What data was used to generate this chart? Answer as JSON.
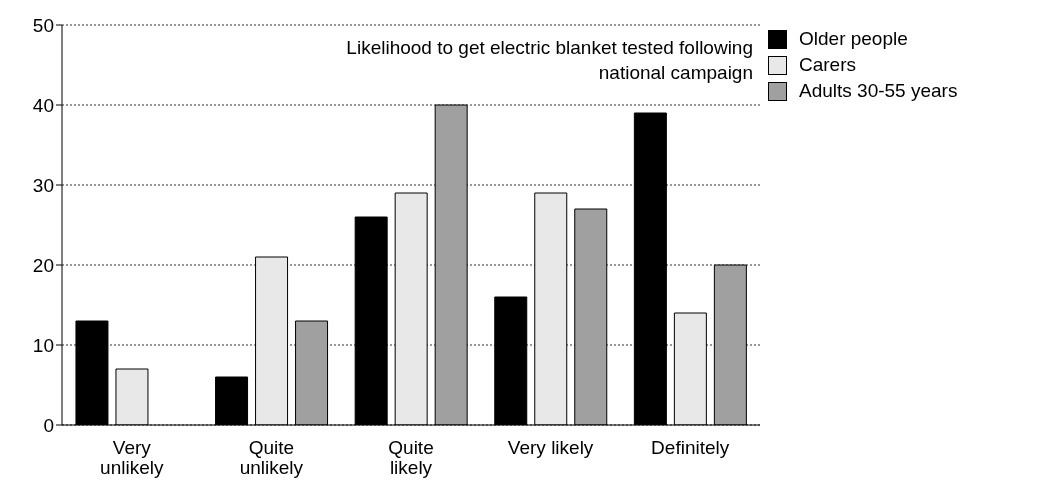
{
  "chart_data": {
    "type": "bar",
    "title": "Likelihood to get electric blanket tested following national campaign",
    "categories": [
      "Very unlikely",
      "Quite unlikely",
      "Quite likely",
      "Very likely",
      "Definitely"
    ],
    "series": [
      {
        "name": "Older people",
        "color": "#000000",
        "values": [
          13,
          6,
          26,
          16,
          39
        ]
      },
      {
        "name": "Carers",
        "color": "#e8e8e8",
        "values": [
          7,
          21,
          29,
          29,
          14
        ]
      },
      {
        "name": "Adults 30-55 years",
        "color": "#a0a0a0",
        "values": [
          0,
          13,
          40,
          27,
          20
        ]
      }
    ],
    "ylim": [
      0,
      50
    ],
    "yticks": [
      0,
      10,
      20,
      30,
      40,
      50
    ],
    "grid": "y",
    "legend": "top right"
  }
}
